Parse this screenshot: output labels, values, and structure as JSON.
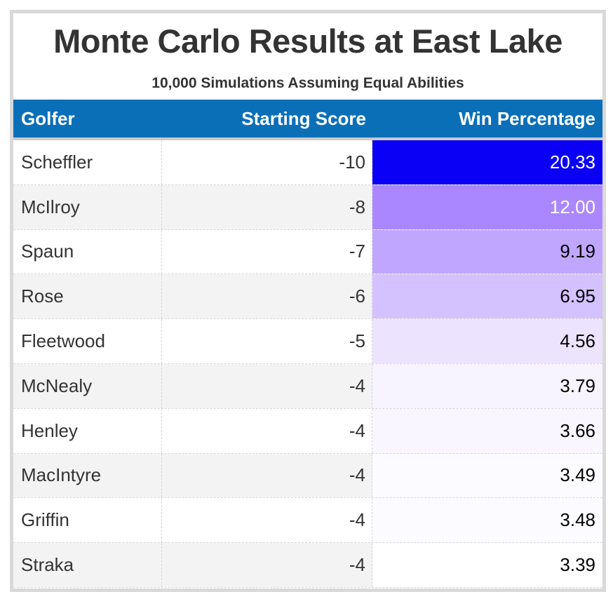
{
  "title": "Monte Carlo Results at East Lake",
  "subtitle": "10,000 Simulations Assuming Equal Abilities",
  "colors": {
    "header_bg": "#0b6fb8",
    "stripe_bg": "#f3f3f3",
    "heat_max": "#0a00f5",
    "heat_min": "#ffffff"
  },
  "chart_data": {
    "type": "table",
    "title": "Monte Carlo Results at East Lake",
    "subtitle": "10,000 Simulations Assuming Equal Abilities",
    "columns": [
      "Golfer",
      "Starting Score",
      "Win Percentage"
    ],
    "rows": [
      {
        "golfer": "Scheffler",
        "score": "-10",
        "win": "20.33"
      },
      {
        "golfer": "McIlroy",
        "score": "-8",
        "win": "12.00"
      },
      {
        "golfer": "Spaun",
        "score": "-7",
        "win": "9.19"
      },
      {
        "golfer": "Rose",
        "score": "-6",
        "win": "6.95"
      },
      {
        "golfer": "Fleetwood",
        "score": "-5",
        "win": "4.56"
      },
      {
        "golfer": "McNealy",
        "score": "-4",
        "win": "3.79"
      },
      {
        "golfer": "Henley",
        "score": "-4",
        "win": "3.66"
      },
      {
        "golfer": "MacIntyre",
        "score": "-4",
        "win": "3.49"
      },
      {
        "golfer": "Griffin",
        "score": "-4",
        "win": "3.48"
      },
      {
        "golfer": "Straka",
        "score": "-4",
        "win": "3.39"
      }
    ]
  }
}
